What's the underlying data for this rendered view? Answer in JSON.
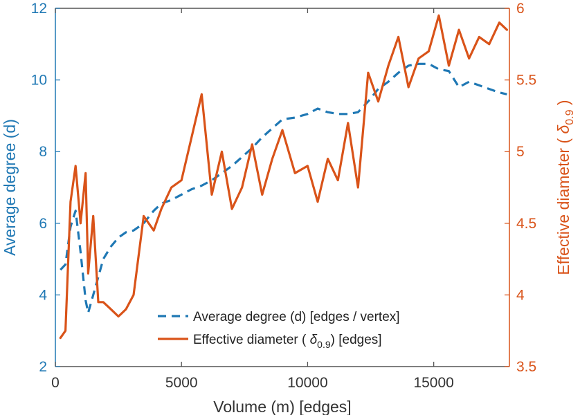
{
  "chart_data": {
    "type": "line",
    "x": [
      200,
      400,
      600,
      800,
      1000,
      1200,
      1300,
      1500,
      1700,
      1900,
      2200,
      2500,
      2800,
      3100,
      3500,
      3900,
      4200,
      4600,
      5000,
      5400,
      5800,
      6200,
      6600,
      7000,
      7400,
      7800,
      8200,
      8600,
      9000,
      9500,
      10000,
      10400,
      10800,
      11200,
      11600,
      12000,
      12400,
      12800,
      13200,
      13600,
      14000,
      14400,
      14800,
      15200,
      15600,
      16000,
      16400,
      16800,
      17200,
      17600,
      17900
    ],
    "series": [
      {
        "name": "Average degree (d) [edges / vertex]",
        "axis": "left",
        "color": "#1f78b4",
        "dash": true,
        "values": [
          4.7,
          4.85,
          5.9,
          6.35,
          5.2,
          3.85,
          3.5,
          4.0,
          4.5,
          5.0,
          5.35,
          5.6,
          5.75,
          5.8,
          6.0,
          6.35,
          6.55,
          6.65,
          6.8,
          6.95,
          7.05,
          7.2,
          7.4,
          7.6,
          7.85,
          8.1,
          8.4,
          8.65,
          8.9,
          8.95,
          9.05,
          9.2,
          9.1,
          9.05,
          9.05,
          9.1,
          9.4,
          9.75,
          9.95,
          10.2,
          10.4,
          10.45,
          10.45,
          10.3,
          10.25,
          9.8,
          9.95,
          9.85,
          9.75,
          9.65,
          9.6
        ]
      },
      {
        "name": "Effective diameter",
        "axis": "right",
        "color": "#d95319",
        "dash": false,
        "values": [
          3.7,
          3.75,
          4.65,
          4.9,
          4.5,
          4.85,
          4.15,
          4.55,
          3.95,
          3.95,
          3.9,
          3.85,
          3.9,
          4.0,
          4.55,
          4.45,
          4.6,
          4.75,
          4.8,
          5.1,
          5.4,
          4.7,
          5.0,
          4.6,
          4.75,
          5.05,
          4.7,
          4.95,
          5.15,
          4.85,
          4.9,
          4.65,
          4.95,
          4.8,
          5.2,
          4.75,
          5.55,
          5.35,
          5.6,
          5.8,
          5.45,
          5.65,
          5.7,
          5.95,
          5.6,
          5.85,
          5.65,
          5.8,
          5.75,
          5.9,
          5.85
        ]
      }
    ],
    "xlim": [
      0,
      18000
    ],
    "ylim_left": [
      2,
      12
    ],
    "ylim_right": [
      3.5,
      6
    ],
    "xticks": [
      0,
      5000,
      10000,
      15000
    ],
    "yticks_left": [
      2,
      4,
      6,
      8,
      10,
      12
    ],
    "yticks_right": [
      3.5,
      4,
      4.5,
      5,
      5.5,
      6
    ],
    "xtick_labels": [
      "0",
      "5000",
      "10000",
      "15000"
    ],
    "ytick_labels_left": [
      "2",
      "4",
      "6",
      "8",
      "10",
      "12"
    ],
    "ytick_labels_right": [
      "3.5",
      "4",
      "4.5",
      "5",
      "5.5",
      "6"
    ],
    "xlabel": "Volume (m) [edges]",
    "ylabel_left": "Average degree (d)",
    "ylabel_right_main": "Effective diameter (",
    "ylabel_right_symbol": "δ",
    "ylabel_right_subscript": "0.9",
    "ylabel_right_close": ")",
    "legend": {
      "entries": [
        {
          "label": "Average degree (d) [edges / vertex]",
          "color": "#1f78b4",
          "dash": true
        },
        {
          "label_prefix": "Effective diameter (",
          "symbol": "δ",
          "subscript": "0.9",
          "label_suffix": ") [edges]",
          "color": "#d95319",
          "dash": false
        }
      ],
      "location": "bottom-center"
    },
    "colors": {
      "left_axis": "#1f78b4",
      "right_axis": "#d95319",
      "bottom_axis": "#333333",
      "axis_line": "#555555"
    }
  }
}
